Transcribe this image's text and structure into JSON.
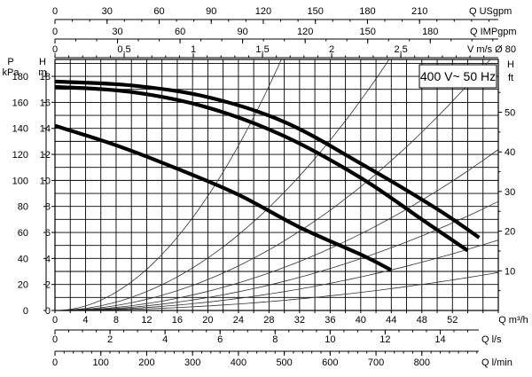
{
  "chart_data": {
    "type": "line",
    "legend_box": "400 V~ 50 Hz",
    "grid": true,
    "x_axis_main": {
      "label": "Q m³/h",
      "min": 0,
      "max": 58,
      "ticks": [
        0,
        4,
        8,
        12,
        16,
        20,
        24,
        28,
        32,
        36,
        40,
        44,
        48,
        52
      ]
    },
    "y_axis_head_m": {
      "label": "H m",
      "min": 0,
      "max": 19.3,
      "ticks": [
        0,
        2,
        4,
        6,
        8,
        10,
        12,
        14,
        16,
        18
      ]
    },
    "y_axis_pressure_kpa": {
      "label": "P kPa",
      "ticks": [
        0,
        20,
        40,
        60,
        80,
        100,
        120,
        140,
        160,
        180
      ]
    },
    "y_axis_head_ft": {
      "label": "H ft",
      "ticks": [
        10,
        20,
        30,
        40,
        50
      ]
    },
    "top_axis_usgpm": {
      "label": "Q USgpm",
      "ticks": [
        0,
        30,
        60,
        90,
        120,
        150,
        180,
        210
      ]
    },
    "top_axis_impgpm": {
      "label": "Q IMPgpm",
      "ticks": [
        0,
        30,
        60,
        90,
        120,
        150,
        180
      ]
    },
    "top_axis_velocity": {
      "label": "V m/s Ø 80",
      "ticks": [
        "0",
        "0,5",
        "1",
        "1,5",
        "2",
        "2,5"
      ],
      "values": [
        0,
        0.5,
        1,
        1.5,
        2,
        2.5
      ]
    },
    "bottom_axis_ls": {
      "label": "Q l/s",
      "ticks": [
        0,
        2,
        4,
        6,
        8,
        10,
        12,
        14
      ]
    },
    "bottom_axis_lmin": {
      "label": "Q l/min",
      "ticks": [
        0,
        100,
        200,
        300,
        400,
        500,
        600,
        700,
        800
      ]
    },
    "series": [
      {
        "points": [
          [
            0,
            17.6
          ],
          [
            10,
            17.3
          ],
          [
            20,
            16.4
          ],
          [
            30,
            14.5
          ],
          [
            40,
            11.3
          ],
          [
            50,
            7.8
          ],
          [
            55.5,
            5.6
          ]
        ]
      },
      {
        "points": [
          [
            0,
            17.2
          ],
          [
            10,
            16.8
          ],
          [
            20,
            15.6
          ],
          [
            30,
            13.4
          ],
          [
            40,
            10.2
          ],
          [
            48,
            7.0
          ],
          [
            54,
            4.6
          ]
        ]
      },
      {
        "points": [
          [
            0,
            14.2
          ],
          [
            8,
            12.7
          ],
          [
            16,
            10.9
          ],
          [
            24,
            8.9
          ],
          [
            32,
            6.4
          ],
          [
            40,
            4.3
          ],
          [
            44,
            3.1
          ]
        ]
      }
    ],
    "system_curves": [
      {
        "k": 0.022
      },
      {
        "k": 0.0101
      },
      {
        "k": 0.00595
      },
      {
        "k": 0.00368
      },
      {
        "k": 0.00249
      },
      {
        "k": 0.00161
      },
      {
        "k": 0.000868
      }
    ]
  }
}
